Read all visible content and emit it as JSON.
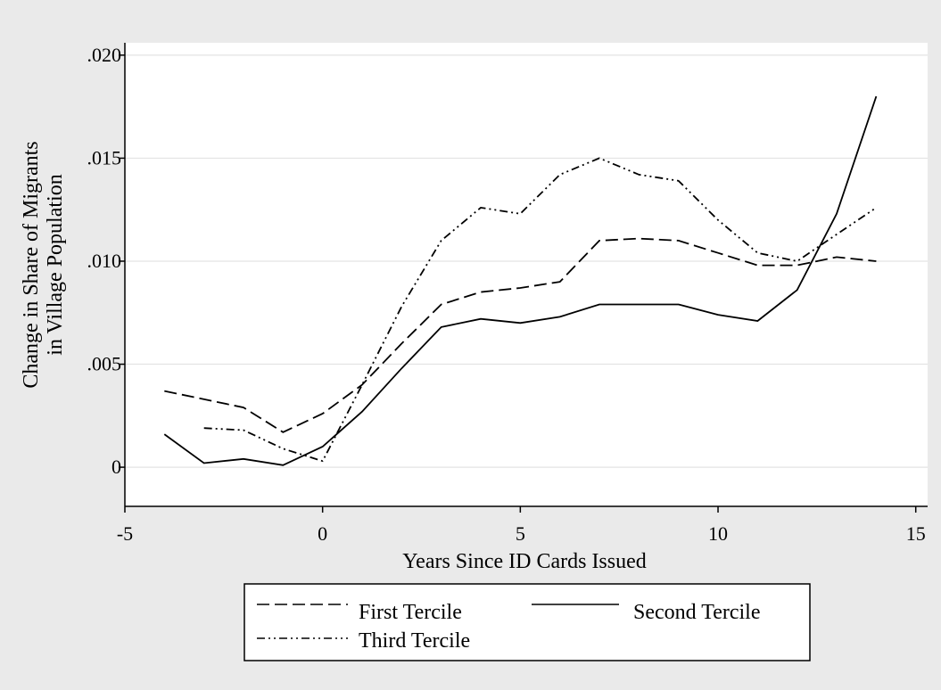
{
  "chart_data": {
    "type": "line",
    "xlabel": "Years Since ID Cards Issued",
    "ylabel_lines": [
      "Change in Share of Migrants",
      "in Village Population"
    ],
    "xlim": [
      -5,
      15.3
    ],
    "ylim": [
      -0.0019,
      0.0206
    ],
    "x_ticks": [
      -5,
      0,
      5,
      10,
      15
    ],
    "x_tick_labels": [
      "-5",
      "0",
      "5",
      "10",
      "15"
    ],
    "y_ticks": [
      0,
      0.005,
      0.01,
      0.015,
      0.02
    ],
    "y_tick_labels": [
      "0",
      ".005",
      ".010",
      ".015",
      ".020"
    ],
    "grid": "horizontal",
    "legend_position": "bottom",
    "series": [
      {
        "name": "First Tercile",
        "dash": "long-dash",
        "x": [
          -4,
          -2,
          -1,
          0,
          1,
          2,
          3,
          4,
          5,
          6,
          7,
          8,
          9,
          10,
          11,
          12,
          13,
          14
        ],
        "y": [
          0.0037,
          0.0029,
          0.0017,
          0.0026,
          0.004,
          0.006,
          0.0079,
          0.0085,
          0.0087,
          0.009,
          0.011,
          0.0111,
          0.011,
          0.0104,
          0.0098,
          0.0098,
          0.0102,
          0.01
        ]
      },
      {
        "name": "Second Tercile",
        "dash": "solid",
        "x": [
          -4,
          -3,
          -2,
          -1,
          0,
          1,
          2,
          3,
          4,
          5,
          6,
          7,
          8,
          9,
          10,
          11,
          12,
          13,
          14
        ],
        "y": [
          0.0016,
          0.0002,
          0.0004,
          0.0001,
          0.001,
          0.0027,
          0.0048,
          0.0068,
          0.0072,
          0.007,
          0.0073,
          0.0079,
          0.0079,
          0.0079,
          0.0074,
          0.0071,
          0.0086,
          0.0123,
          0.018
        ]
      },
      {
        "name": "Third Tercile",
        "dash": "dash-dot",
        "x": [
          -3,
          -2,
          -1,
          0,
          1,
          2,
          3,
          4,
          5,
          6,
          7,
          8,
          9,
          10,
          11,
          12,
          13,
          14
        ],
        "y": [
          0.0019,
          0.0018,
          0.0009,
          0.0003,
          0.004,
          0.0078,
          0.011,
          0.0126,
          0.0123,
          0.0142,
          0.015,
          0.0142,
          0.0139,
          0.012,
          0.0104,
          0.01,
          0.0113,
          0.0126
        ]
      }
    ],
    "legend": {
      "entries": [
        "First Tercile",
        "Second Tercile",
        "Third Tercile"
      ]
    }
  }
}
